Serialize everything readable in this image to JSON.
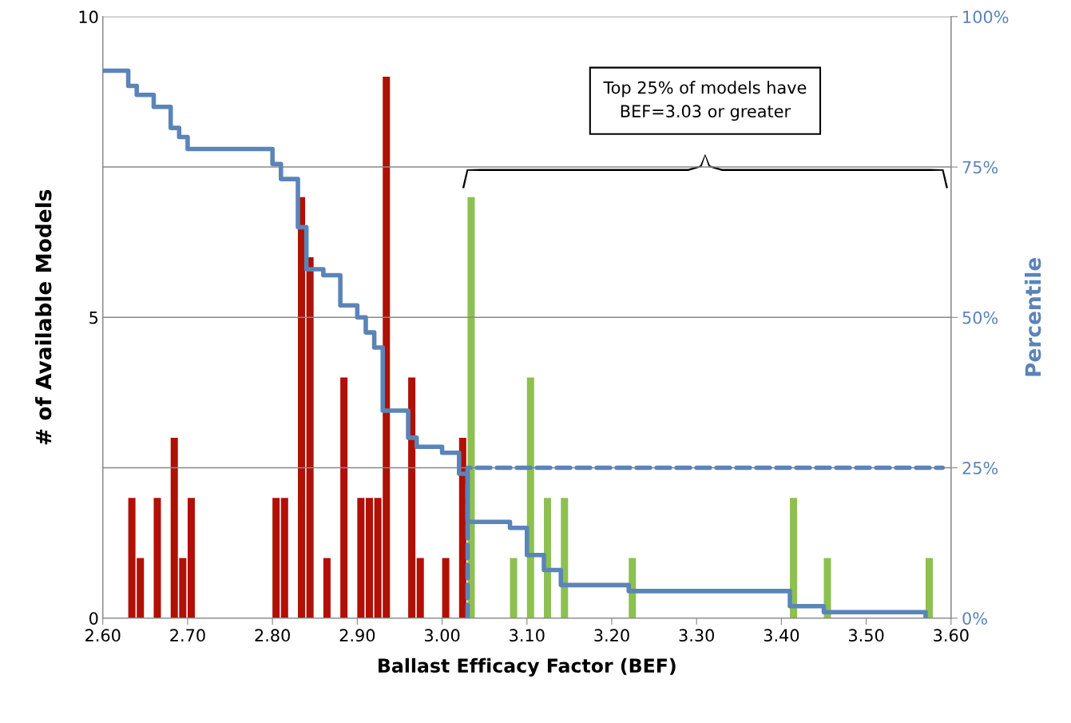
{
  "chart_data": {
    "type": "histogram",
    "xlabel": "Ballast Efficacy Factor (BEF)",
    "ylabel": "# of Available Models",
    "y2label": "Percentile",
    "xlim": [
      2.6,
      3.6
    ],
    "xticks": [
      {
        "value": 2.6,
        "label": "2.60"
      },
      {
        "value": 2.7,
        "label": "2.70"
      },
      {
        "value": 2.8,
        "label": "2.80"
      },
      {
        "value": 2.9,
        "label": "2.90"
      },
      {
        "value": 3.0,
        "label": "3.00"
      },
      {
        "value": 3.1,
        "label": "3.10"
      },
      {
        "value": 3.2,
        "label": "3.20"
      },
      {
        "value": 3.3,
        "label": "3.30"
      },
      {
        "value": 3.4,
        "label": "3.40"
      },
      {
        "value": 3.5,
        "label": "3.50"
      },
      {
        "value": 3.6,
        "label": "3.60"
      }
    ],
    "ylim": [
      0,
      10
    ],
    "yticks": [
      0,
      5,
      10
    ],
    "y2lim": [
      0,
      100
    ],
    "y2ticks": [
      {
        "value": 0,
        "label": "0%"
      },
      {
        "value": 25,
        "label": "25%"
      },
      {
        "value": 50,
        "label": "50%"
      },
      {
        "value": 75,
        "label": "75%"
      },
      {
        "value": 100,
        "label": "100%"
      }
    ],
    "grid": "y",
    "annotations": [
      "Top 25% of models have\nBEF=3.03 or greater"
    ],
    "series": [
      {
        "type": "histogram",
        "bins": [
          2.6,
          2.61,
          2.62,
          2.63,
          2.64,
          2.65,
          2.66,
          2.67,
          2.68,
          2.69,
          2.7,
          2.71,
          2.72,
          2.73,
          2.74,
          2.75,
          2.76,
          2.77,
          2.78,
          2.79,
          2.8,
          2.81,
          2.82,
          2.83,
          2.84,
          2.85,
          2.86,
          2.87,
          2.88,
          2.89,
          2.9,
          2.91,
          2.92,
          2.93,
          2.94,
          2.95,
          2.96,
          2.97,
          2.98,
          2.99,
          3.0,
          3.01,
          3.02,
          3.03,
          3.04,
          3.05,
          3.06,
          3.07,
          3.08,
          3.09,
          3.1,
          3.11,
          3.12,
          3.13,
          3.14,
          3.15,
          3.16,
          3.17,
          3.18,
          3.19,
          3.2,
          3.21,
          3.22,
          3.23,
          3.24,
          3.25,
          3.26,
          3.27,
          3.28,
          3.29,
          3.3,
          3.31,
          3.32,
          3.33,
          3.34,
          3.35,
          3.36,
          3.37,
          3.38,
          3.39,
          3.4,
          3.41,
          3.42,
          3.43,
          3.44,
          3.45,
          3.46,
          3.47,
          3.48,
          3.49,
          3.5,
          3.51,
          3.52,
          3.53,
          3.54,
          3.55,
          3.56,
          3.57,
          3.58,
          3.59,
          3.6
        ],
        "values": [
          0,
          0,
          0,
          2,
          1,
          0,
          2,
          0,
          3,
          1,
          2,
          0,
          0,
          0,
          0,
          0,
          0,
          0,
          0,
          0,
          2,
          2,
          0,
          7,
          6,
          0,
          1,
          0,
          4,
          0,
          2,
          2,
          2,
          9,
          0,
          0,
          4,
          1,
          0,
          0,
          1,
          0,
          3,
          7,
          0,
          0,
          0,
          0,
          1,
          0,
          4,
          0,
          2,
          0,
          2,
          0,
          0,
          0,
          0,
          0,
          0,
          0,
          1,
          0,
          0,
          0,
          0,
          0,
          0,
          0,
          0,
          0,
          0,
          0,
          0,
          0,
          0,
          0,
          0,
          0,
          0,
          2,
          0,
          0,
          0,
          1,
          0,
          0,
          0,
          0,
          0,
          0,
          0,
          0,
          0,
          0,
          0,
          1,
          0,
          0
        ],
        "colors": [
          "#b01005",
          "#b01005",
          "#b01005",
          "#b01005",
          "#b01005",
          "#b01005",
          "#b01005",
          "#b01005",
          "#b01005",
          "#b01005",
          "#b01005",
          "#b01005",
          "#b01005",
          "#b01005",
          "#b01005",
          "#b01005",
          "#b01005",
          "#b01005",
          "#b01005",
          "#b01005",
          "#b01005",
          "#b01005",
          "#b01005",
          "#b01005",
          "#b01005",
          "#b01005",
          "#b01005",
          "#b01005",
          "#b01005",
          "#b01005",
          "#b01005",
          "#b01005",
          "#b01005",
          "#b01005",
          "#b01005",
          "#b01005",
          "#b01005",
          "#b01005",
          "#b01005",
          "#b01005",
          "#b01005",
          "#b01005",
          "#b01005",
          "#8dc050",
          "#8dc050",
          "#8dc050",
          "#8dc050",
          "#8dc050",
          "#8dc050",
          "#8dc050",
          "#8dc050",
          "#8dc050",
          "#8dc050",
          "#8dc050",
          "#8dc050",
          "#8dc050",
          "#8dc050",
          "#8dc050",
          "#8dc050",
          "#8dc050",
          "#8dc050",
          "#8dc050",
          "#8dc050",
          "#8dc050",
          "#8dc050",
          "#8dc050",
          "#8dc050",
          "#8dc050",
          "#8dc050",
          "#8dc050",
          "#8dc050",
          "#8dc050",
          "#8dc050",
          "#8dc050",
          "#8dc050",
          "#8dc050",
          "#8dc050",
          "#8dc050",
          "#8dc050",
          "#8dc050",
          "#8dc050",
          "#8dc050",
          "#8dc050",
          "#8dc050",
          "#8dc050",
          "#8dc050",
          "#8dc050",
          "#8dc050",
          "#8dc050",
          "#8dc050",
          "#8dc050",
          "#8dc050",
          "#8dc050",
          "#8dc050",
          "#8dc050",
          "#8dc050",
          "#8dc050",
          "#8dc050",
          "#8dc050",
          "#8dc050"
        ]
      },
      {
        "type": "step",
        "axis": "y2",
        "color": "#5b84b8",
        "line_style": "solid",
        "x": [
          2.6,
          2.63,
          2.64,
          2.66,
          2.68,
          2.69,
          2.7,
          2.8,
          2.81,
          2.83,
          2.84,
          2.86,
          2.88,
          2.9,
          2.91,
          2.92,
          2.93,
          2.96,
          2.97,
          3.0,
          3.02,
          3.03,
          3.08,
          3.1,
          3.12,
          3.14,
          3.22,
          3.41,
          3.45,
          3.57
        ],
        "values": [
          91,
          88.5,
          87,
          85,
          81.5,
          80,
          78,
          75.5,
          73,
          65,
          58,
          57,
          52,
          50,
          47.5,
          45,
          34.5,
          30,
          28.5,
          27.5,
          24,
          16,
          15,
          10.5,
          8,
          5.5,
          4.5,
          2,
          1,
          0
        ]
      },
      {
        "type": "line",
        "axis": "y2",
        "color": "#5b84b8",
        "line_style": "dashed",
        "x": [
          3.03,
          3.03,
          3.59
        ],
        "values": [
          0,
          25,
          25
        ]
      }
    ]
  }
}
